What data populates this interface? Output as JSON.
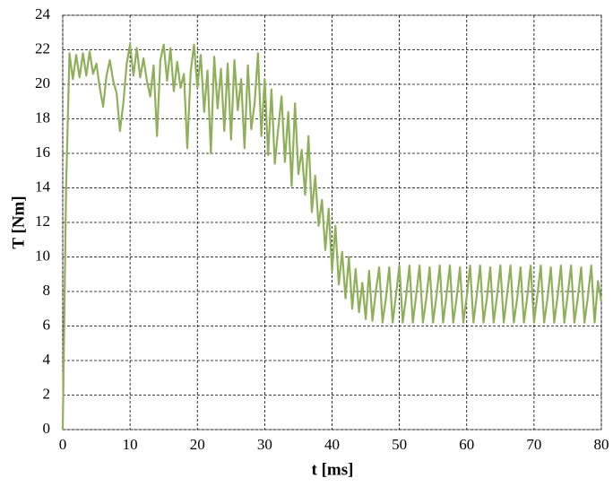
{
  "chart_data": {
    "type": "line",
    "xlabel": "t [ms]",
    "ylabel": "T [Nm]",
    "x": [
      0,
      0.5,
      1,
      1.5,
      2,
      2.5,
      3,
      3.5,
      4,
      4.5,
      5,
      5.5,
      6,
      6.5,
      7,
      7.5,
      8,
      8.5,
      9,
      9.5,
      10,
      10.5,
      11,
      11.5,
      12,
      12.5,
      13,
      13.5,
      14,
      14.5,
      15,
      15.5,
      16,
      16.5,
      17,
      17.5,
      18,
      18.5,
      19,
      19.5,
      20,
      20.5,
      21,
      21.5,
      22,
      22.5,
      23,
      23.5,
      24,
      24.5,
      25,
      25.5,
      26,
      26.5,
      27,
      27.5,
      28,
      28.5,
      29,
      29.5,
      30,
      30.5,
      31,
      31.5,
      32,
      32.5,
      33,
      33.5,
      34,
      34.5,
      35,
      35.5,
      36,
      36.5,
      37,
      37.5,
      38,
      38.5,
      39,
      39.5,
      40,
      40.5,
      41,
      41.5,
      42,
      42.5,
      43,
      43.5,
      44,
      44.5,
      45,
      45.5,
      46,
      46.5,
      47,
      47.5,
      48,
      48.5,
      49,
      49.5,
      50,
      50.5,
      51,
      51.5,
      52,
      52.5,
      53,
      53.5,
      54,
      54.5,
      55,
      55.5,
      56,
      56.5,
      57,
      57.5,
      58,
      58.5,
      59,
      59.5,
      60,
      60.5,
      61,
      61.5,
      62,
      62.5,
      63,
      63.5,
      64,
      64.5,
      65,
      65.5,
      66,
      66.5,
      67,
      67.5,
      68,
      68.5,
      69,
      69.5,
      70,
      70.5,
      71,
      71.5,
      72,
      72.5,
      73,
      73.5,
      74,
      74.5,
      75,
      75.5,
      76,
      76.5,
      77,
      77.5,
      78,
      78.5,
      79,
      79.5,
      80
    ],
    "series": [
      {
        "color": "#8fb05a",
        "values": [
          0,
          14,
          21.8,
          20.3,
          21.7,
          20.4,
          21.8,
          20.5,
          21.9,
          20.6,
          21.2,
          19.8,
          18.7,
          20.5,
          21.4,
          20.2,
          19.5,
          17.3,
          18.9,
          21.2,
          22.3,
          20.5,
          22.1,
          20.4,
          21.5,
          20.2,
          19.3,
          21.1,
          17.0,
          21.4,
          22.3,
          20.2,
          22.1,
          19.6,
          21.3,
          19.8,
          20.6,
          16.3,
          20.7,
          22.3,
          19.8,
          21.7,
          18.4,
          20.8,
          16.0,
          21.6,
          18.6,
          20.9,
          17.3,
          21.2,
          16.8,
          21.4,
          18.5,
          20.3,
          16.3,
          21.1,
          17.4,
          18.9,
          21.8,
          17.0,
          20.3,
          15.9,
          19.7,
          15.4,
          17.4,
          19.3,
          15.5,
          18.4,
          14.1,
          18.9,
          14.8,
          16.2,
          13.6,
          17.0,
          12.6,
          14.7,
          11.8,
          13.3,
          10.4,
          12.8,
          9.2,
          11.8,
          8.4,
          10.3,
          7.6,
          10.0,
          7.0,
          9.3,
          6.8,
          8.5,
          6.4,
          9.2,
          6.3,
          8.0,
          9.4,
          6.2,
          7.6,
          9.4,
          6.2,
          7.8,
          9.5,
          6.2,
          7.7,
          9.5,
          6.2,
          7.8,
          9.5,
          6.2,
          7.6,
          9.4,
          6.2,
          7.7,
          9.5,
          6.2,
          7.8,
          9.5,
          6.2,
          7.6,
          9.4,
          6.2,
          7.7,
          9.5,
          6.2,
          7.8,
          9.5,
          6.2,
          7.6,
          9.4,
          6.2,
          7.7,
          9.5,
          6.2,
          7.8,
          9.5,
          6.2,
          7.6,
          9.4,
          6.2,
          7.7,
          9.5,
          6.2,
          7.8,
          9.5,
          6.2,
          7.6,
          9.4,
          6.2,
          7.7,
          9.5,
          6.2,
          7.8,
          9.5,
          6.2,
          7.6,
          9.4,
          6.2,
          7.7,
          9.5,
          6.2,
          8.6,
          7.4
        ]
      }
    ],
    "xlim": [
      0,
      80
    ],
    "xticks": [
      0,
      10,
      20,
      30,
      40,
      50,
      60,
      70,
      80
    ],
    "ylim": [
      0,
      24
    ],
    "yticks": [
      0,
      2,
      4,
      6,
      8,
      10,
      12,
      14,
      16,
      18,
      20,
      22,
      24
    ],
    "grid": true
  }
}
